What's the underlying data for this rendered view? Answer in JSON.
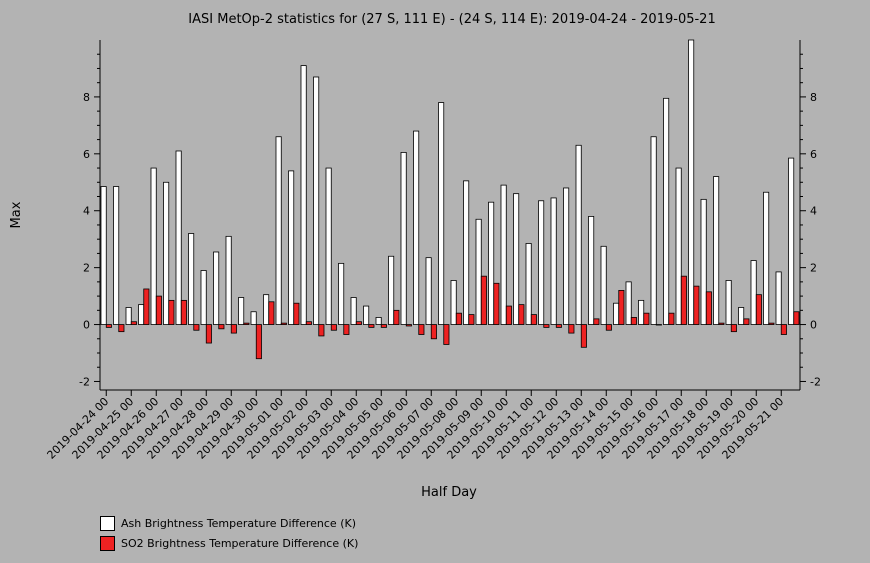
{
  "chart_data": {
    "type": "bar",
    "title": "IASI MetOp-2 statistics for (27 S, 111 E) - (24 S, 114 E): 2019-04-24 - 2019-05-21",
    "xlabel": "Half Day",
    "ylabel": "Max",
    "ylim": [
      -2.3,
      10
    ],
    "yticks": [
      -2,
      0,
      2,
      4,
      6,
      8
    ],
    "grid": false,
    "legend_position": "bottom-left",
    "x_tick_labels": [
      "2019-04-24 00",
      "2019-04-25 00",
      "2019-04-26 00",
      "2019-04-27 00",
      "2019-04-28 00",
      "2019-04-29 00",
      "2019-04-30 00",
      "2019-05-01 00",
      "2019-05-02 00",
      "2019-05-03 00",
      "2019-05-04 00",
      "2019-05-05 00",
      "2019-05-06 00",
      "2019-05-07 00",
      "2019-05-08 00",
      "2019-05-09 00",
      "2019-05-10 00",
      "2019-05-11 00",
      "2019-05-12 00",
      "2019-05-13 00",
      "2019-05-14 00",
      "2019-05-15 00",
      "2019-05-16 00",
      "2019-05-17 00",
      "2019-05-18 00",
      "2019-05-19 00",
      "2019-05-20 00",
      "2019-05-21 00"
    ],
    "series": [
      {
        "name": "Ash Brightness Temperature Difference (K)",
        "color": "#ffffff",
        "values": [
          4.85,
          4.85,
          0.6,
          0.7,
          5.5,
          5.0,
          6.1,
          3.2,
          1.9,
          2.55,
          3.1,
          0.95,
          0.45,
          1.05,
          6.6,
          5.4,
          9.1,
          8.7,
          5.5,
          2.15,
          0.95,
          0.65,
          0.25,
          2.4,
          6.05,
          6.8,
          2.35,
          7.8,
          1.55,
          5.05,
          3.7,
          4.3,
          4.9,
          4.6,
          2.85,
          4.35,
          4.45,
          4.8,
          6.3,
          3.8,
          2.75,
          0.75,
          1.5,
          0.85,
          6.6,
          7.95,
          5.5,
          10.0,
          4.4,
          5.2,
          1.55,
          0.6,
          2.25,
          4.65,
          1.85,
          5.85
        ]
      },
      {
        "name": "SO2 Brightness Temperature Difference (K)",
        "color": "#ee2222",
        "values": [
          -0.1,
          -0.25,
          0.1,
          1.25,
          1.0,
          0.85,
          0.85,
          -0.2,
          -0.65,
          -0.15,
          -0.3,
          0.05,
          -1.2,
          0.8,
          0.05,
          0.75,
          0.1,
          -0.4,
          -0.2,
          -0.35,
          0.1,
          -0.1,
          -0.1,
          0.5,
          -0.05,
          -0.35,
          -0.5,
          -0.7,
          0.4,
          0.35,
          1.7,
          1.45,
          0.65,
          0.7,
          0.35,
          -0.1,
          -0.1,
          -0.3,
          -0.8,
          0.2,
          -0.2,
          1.2,
          0.25,
          0.4,
          0.0,
          0.4,
          1.7,
          1.35,
          1.15,
          0.05,
          -0.25,
          0.2,
          1.05,
          0.05,
          -0.35,
          0.45
        ]
      }
    ]
  }
}
